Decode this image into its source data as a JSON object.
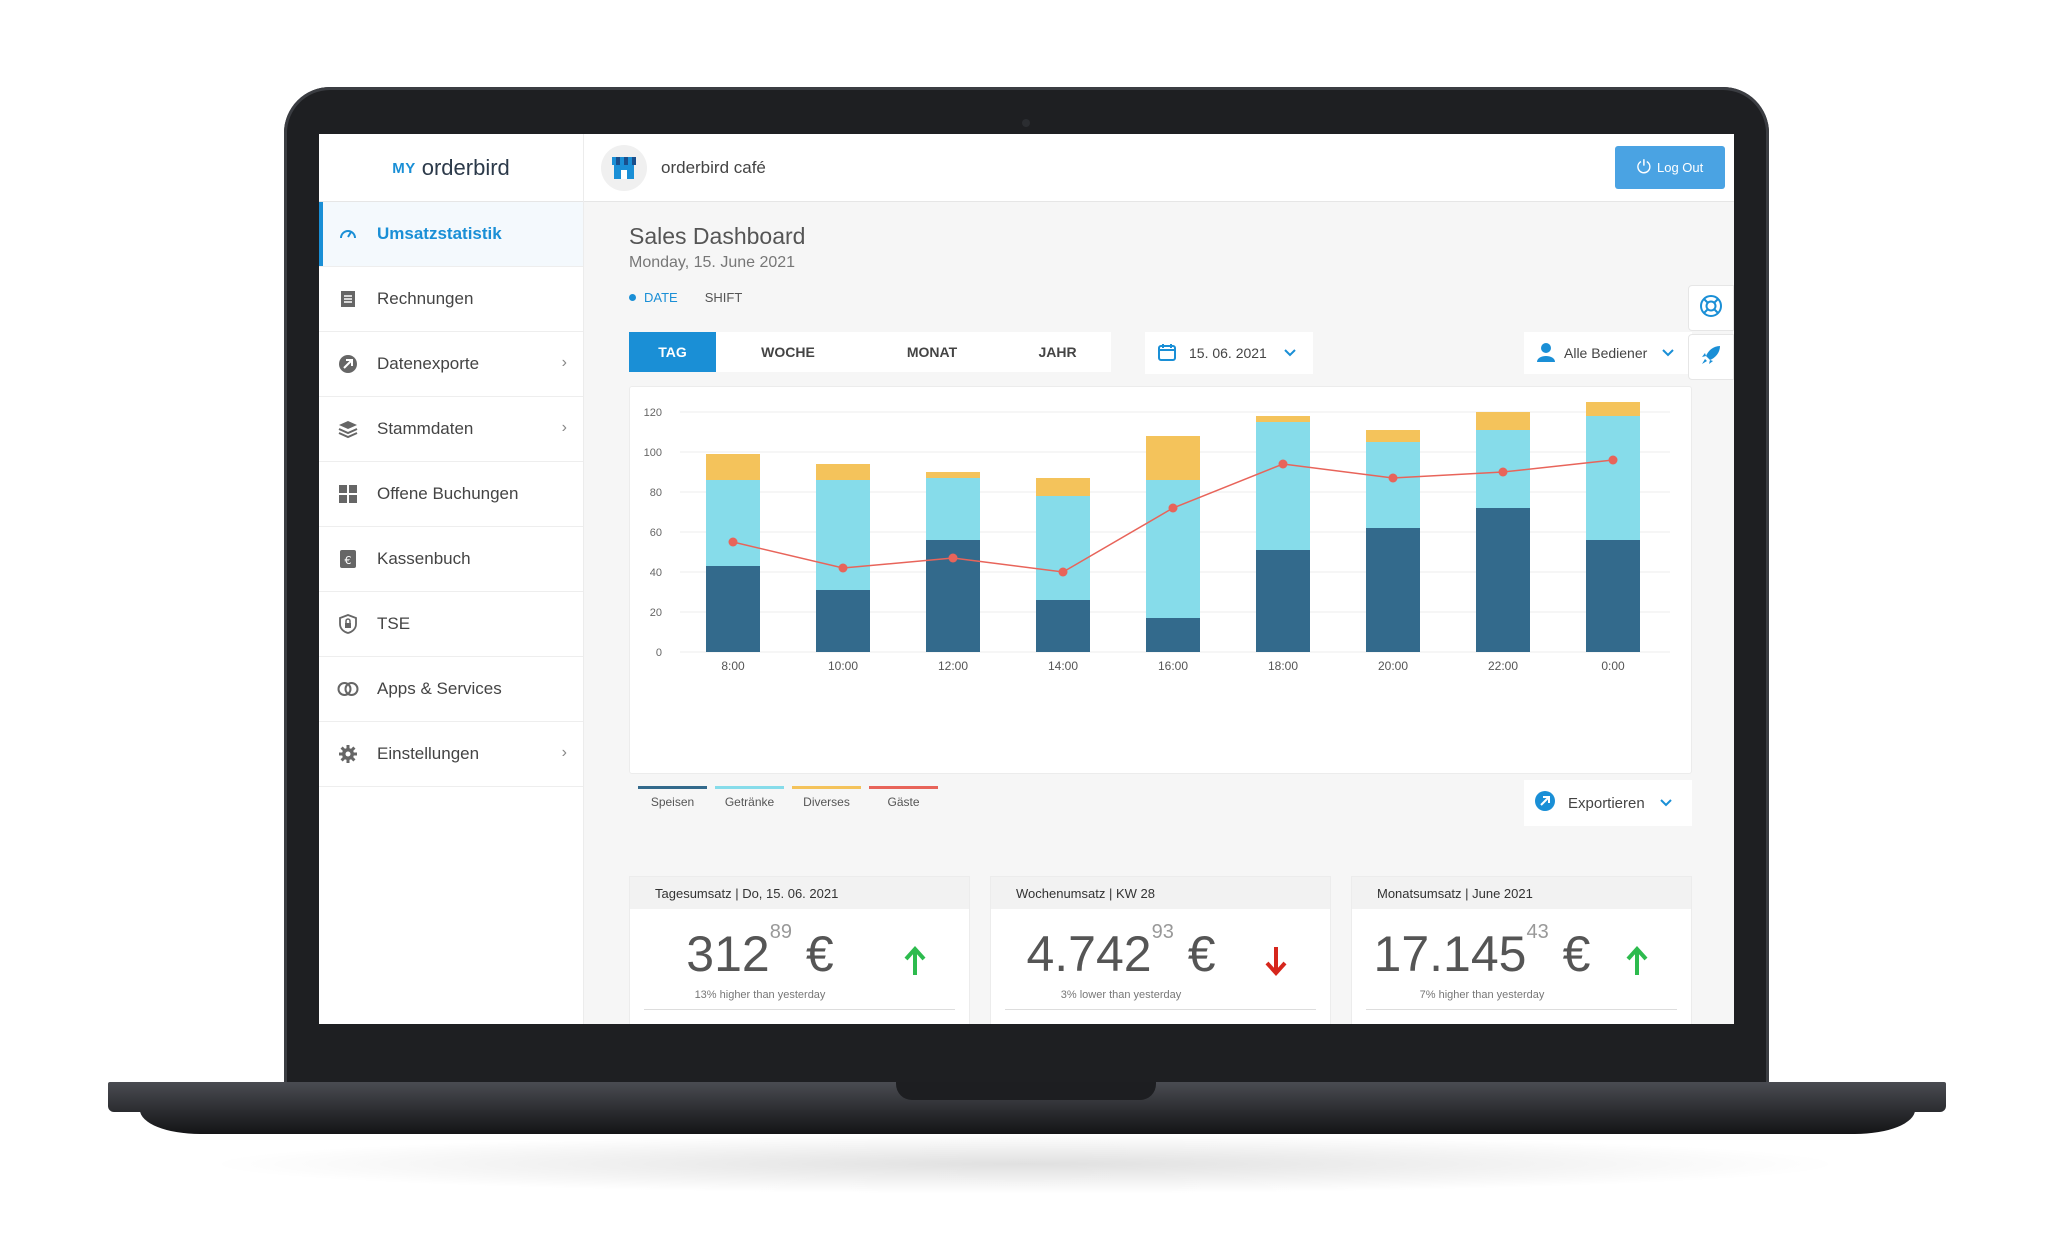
{
  "app": {
    "brand_prefix": "MY",
    "brand_name_regular": "order",
    "brand_name_bold": "bird",
    "store_name": "orderbird café",
    "logout_label": "Log Out"
  },
  "sidebar": {
    "items": [
      {
        "label": "Umsatzstatistik",
        "icon": "speedometer-icon",
        "active": true,
        "chevron": false
      },
      {
        "label": "Rechnungen",
        "icon": "receipt-icon",
        "active": false,
        "chevron": false
      },
      {
        "label": "Datenexporte",
        "icon": "export-icon",
        "active": false,
        "chevron": true
      },
      {
        "label": "Stammdaten",
        "icon": "layers-icon",
        "active": false,
        "chevron": true
      },
      {
        "label": "Offene Buchungen",
        "icon": "grid-icon",
        "active": false,
        "chevron": false
      },
      {
        "label": "Kassenbuch",
        "icon": "cashbook-icon",
        "active": false,
        "chevron": false
      },
      {
        "label": "TSE",
        "icon": "shield-lock-icon",
        "active": false,
        "chevron": false
      },
      {
        "label": "Apps & Services",
        "icon": "rings-icon",
        "active": false,
        "chevron": false
      },
      {
        "label": "Einstellungen",
        "icon": "gear-icon",
        "active": false,
        "chevron": true
      }
    ]
  },
  "main": {
    "title": "Sales Dashboard",
    "date": "Monday, 15. June 2021",
    "mode_date": "DATE",
    "mode_shift": "SHIFT",
    "range_tabs": [
      "TAG",
      "WOCHE",
      "MONAT",
      "JAHR"
    ],
    "date_value": "15. 06. 2021",
    "staff_value": "Alle Bediener",
    "export_label": "Exportieren"
  },
  "colors": {
    "accent": "#1a8fd6",
    "speisen": "#336a8c",
    "getraenke": "#86dcea",
    "diverses": "#f4c35b",
    "gaeste": "#e8645a",
    "up": "#2dbb4e",
    "down": "#d6261c"
  },
  "chart_data": {
    "type": "bar",
    "stacked": true,
    "categories": [
      "8:00",
      "10:00",
      "12:00",
      "14:00",
      "16:00",
      "18:00",
      "20:00",
      "22:00",
      "0:00"
    ],
    "series": [
      {
        "name": "Speisen",
        "type": "bar",
        "values": [
          43,
          31,
          56,
          26,
          17,
          51,
          62,
          72,
          56
        ]
      },
      {
        "name": "Getränke",
        "type": "bar",
        "values": [
          43,
          55,
          31,
          52,
          69,
          64,
          43,
          39,
          62
        ]
      },
      {
        "name": "Diverses",
        "type": "bar",
        "values": [
          13,
          8,
          3,
          9,
          22,
          3,
          6,
          9,
          7
        ]
      },
      {
        "name": "Gäste",
        "type": "line",
        "values": [
          55,
          42,
          47,
          40,
          72,
          94,
          87,
          90,
          96
        ]
      }
    ],
    "ylim": [
      0,
      120
    ],
    "yticks": [
      0,
      20,
      40,
      60,
      80,
      100,
      120
    ],
    "grid": true,
    "legend": "bottom-left"
  },
  "kpis": [
    {
      "label": "Tagesumsatz | Do, 15. 06. 2021",
      "whole": "312",
      "cents": "89",
      "currency": "€",
      "note": "13% higher than yesterday",
      "trend": "up"
    },
    {
      "label": "Wochenumsatz | KW 28",
      "whole": "4.742",
      "cents": "93",
      "currency": "€",
      "note": "3% lower than yesterday",
      "trend": "down"
    },
    {
      "label": "Monatsumsatz | June 2021",
      "whole": "17.145",
      "cents": "43",
      "currency": "€",
      "note": "7% higher than yesterday",
      "trend": "up"
    }
  ]
}
